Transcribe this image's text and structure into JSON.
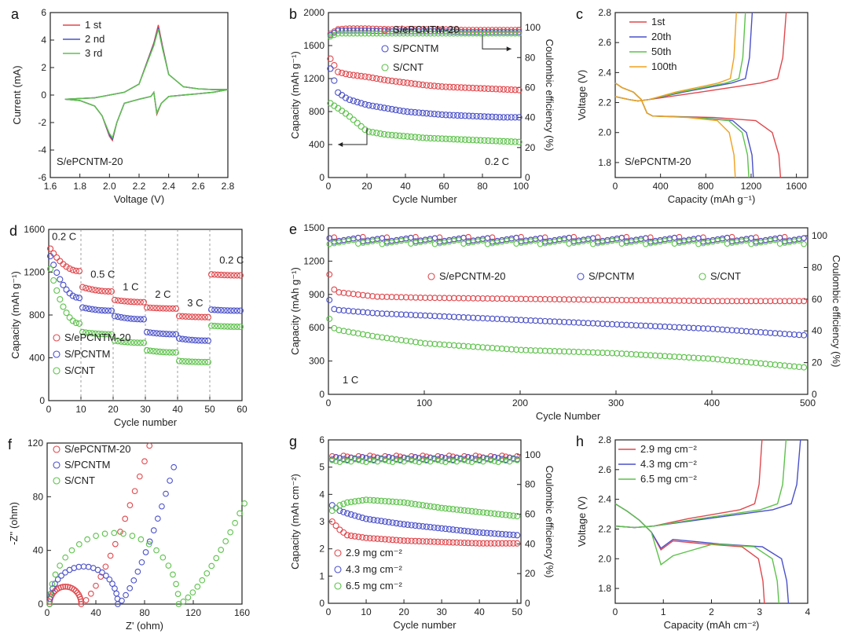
{
  "colors": {
    "red": "#e0474c",
    "blue": "#4a50c9",
    "green": "#5cc24a",
    "orange": "#f0a020"
  },
  "chart_data": [
    {
      "panel": "a",
      "type": "line",
      "xlabel": "Voltage (V)",
      "ylabel": "Current (mA)",
      "xlim": [
        1.6,
        2.8
      ],
      "ylim": [
        -6,
        6
      ],
      "xticks": [
        "1.6",
        "1.8",
        "2.0",
        "2.2",
        "2.4",
        "2.6",
        "2.8"
      ],
      "yticks": [
        "-6",
        "-4",
        "-2",
        "0",
        "2",
        "4",
        "6"
      ],
      "sample_label": "S/ePCNTM-20",
      "series": [
        {
          "name": "1 st",
          "color": "red",
          "x": [
            1.7,
            1.8,
            1.9,
            1.95,
            2.0,
            2.02,
            2.05,
            2.1,
            2.2,
            2.28,
            2.3,
            2.32,
            2.35,
            2.4,
            2.5,
            2.6,
            2.7,
            2.8,
            2.7,
            2.6,
            2.5,
            2.4,
            2.36,
            2.33,
            2.3,
            2.2,
            2.1,
            1.9,
            1.7
          ],
          "y": [
            -0.3,
            -0.4,
            -0.8,
            -1.5,
            -3.0,
            -3.3,
            -2.0,
            -0.6,
            -0.3,
            -0.1,
            0.2,
            -1.4,
            -0.6,
            -0.1,
            0.0,
            0.1,
            0.2,
            0.4,
            0.4,
            0.45,
            0.6,
            1.5,
            3.5,
            5.1,
            3.8,
            0.8,
            0.2,
            -0.2,
            -0.3
          ]
        },
        {
          "name": "2 nd",
          "color": "blue",
          "x": [
            1.7,
            1.8,
            1.9,
            1.95,
            2.0,
            2.02,
            2.05,
            2.1,
            2.2,
            2.28,
            2.3,
            2.32,
            2.35,
            2.4,
            2.5,
            2.6,
            2.7,
            2.8,
            2.7,
            2.6,
            2.5,
            2.4,
            2.36,
            2.33,
            2.3,
            2.2,
            2.1,
            1.9,
            1.7
          ],
          "y": [
            -0.3,
            -0.4,
            -0.8,
            -1.5,
            -2.9,
            -3.2,
            -2.0,
            -0.6,
            -0.3,
            -0.1,
            0.2,
            -1.3,
            -0.6,
            -0.1,
            0.0,
            0.1,
            0.2,
            0.4,
            0.4,
            0.45,
            0.6,
            1.5,
            3.4,
            4.9,
            3.7,
            0.8,
            0.2,
            -0.2,
            -0.3
          ]
        },
        {
          "name": "3 rd",
          "color": "green",
          "x": [
            1.7,
            1.8,
            1.9,
            1.95,
            2.0,
            2.02,
            2.05,
            2.1,
            2.2,
            2.28,
            2.3,
            2.32,
            2.35,
            2.4,
            2.5,
            2.6,
            2.7,
            2.8,
            2.7,
            2.6,
            2.5,
            2.4,
            2.36,
            2.33,
            2.3,
            2.2,
            2.1,
            1.9,
            1.7
          ],
          "y": [
            -0.3,
            -0.4,
            -0.8,
            -1.5,
            -2.8,
            -3.1,
            -2.0,
            -0.6,
            -0.3,
            -0.1,
            0.2,
            -1.3,
            -0.6,
            -0.1,
            0.0,
            0.1,
            0.2,
            0.4,
            0.4,
            0.45,
            0.6,
            1.5,
            3.3,
            4.8,
            3.6,
            0.8,
            0.2,
            -0.2,
            -0.3
          ]
        }
      ]
    },
    {
      "panel": "b",
      "type": "scatter",
      "xlabel": "Cycle Number",
      "ylabel": "Capacity (mAh g⁻¹)",
      "y2label": "Coulombic efficiency (%)",
      "xlim": [
        0,
        100
      ],
      "ylim": [
        0,
        2000
      ],
      "y2lim": [
        0,
        110
      ],
      "xticks": [
        "0",
        "20",
        "40",
        "60",
        "80",
        "100"
      ],
      "yticks": [
        "0",
        "400",
        "800",
        "1200",
        "1600",
        "2000"
      ],
      "y2ticks": [
        "0",
        "20",
        "40",
        "60",
        "80",
        "100"
      ],
      "annotation": "0.2 C",
      "series": [
        {
          "name": "S/ePCNTM-20",
          "color": "red",
          "x": [
            1,
            5,
            10,
            20,
            30,
            40,
            50,
            60,
            70,
            80,
            90,
            100
          ],
          "y": [
            1440,
            1280,
            1250,
            1220,
            1180,
            1150,
            1120,
            1100,
            1090,
            1080,
            1070,
            1060
          ],
          "ce": [
            96,
            99,
            99.5,
            99.5,
            99,
            99,
            99,
            99,
            98.5,
            98.5,
            98.5,
            98.5
          ]
        },
        {
          "name": "S/PCNTM",
          "color": "blue",
          "x": [
            1,
            5,
            10,
            20,
            30,
            40,
            50,
            60,
            70,
            80,
            90,
            100
          ],
          "y": [
            1320,
            1030,
            950,
            880,
            840,
            800,
            780,
            760,
            750,
            740,
            730,
            730
          ],
          "ce": [
            95,
            98,
            98,
            98,
            97.5,
            97.5,
            97.5,
            97.5,
            97,
            97,
            97,
            97
          ]
        },
        {
          "name": "S/CNT",
          "color": "green",
          "x": [
            1,
            5,
            10,
            20,
            30,
            40,
            50,
            60,
            70,
            80,
            90,
            100
          ],
          "y": [
            900,
            840,
            760,
            560,
            520,
            500,
            480,
            470,
            460,
            450,
            440,
            430
          ],
          "ce": [
            94,
            96,
            96,
            96,
            96,
            96,
            96,
            96,
            96,
            96,
            96,
            96
          ]
        }
      ]
    },
    {
      "panel": "c",
      "type": "line",
      "xlabel": "Capacity (mAh g⁻¹)",
      "ylabel": "Voltage (V)",
      "xlim": [
        0,
        1700
      ],
      "ylim": [
        1.7,
        2.8
      ],
      "xticks": [
        "0",
        "400",
        "800",
        "1200",
        "1600"
      ],
      "yticks": [
        "1.8",
        "2.0",
        "2.2",
        "2.4",
        "2.6",
        "2.8"
      ],
      "sample_label": "S/ePCNTM-20",
      "series": [
        {
          "name": "1st",
          "color": "red",
          "discharge_end": 1460,
          "charge_end": 1510
        },
        {
          "name": "20th",
          "color": "blue",
          "discharge_end": 1220,
          "charge_end": 1210
        },
        {
          "name": "50th",
          "color": "green",
          "discharge_end": 1180,
          "charge_end": 1150
        },
        {
          "name": "100th",
          "color": "orange",
          "discharge_end": 1060,
          "charge_end": 1070
        }
      ]
    },
    {
      "panel": "d",
      "type": "scatter",
      "xlabel": "Cycle number",
      "ylabel": "Capacity (mAh g⁻¹)",
      "xlim": [
        0,
        60
      ],
      "ylim": [
        0,
        1600
      ],
      "xticks": [
        "0",
        "10",
        "20",
        "30",
        "40",
        "50",
        "60"
      ],
      "yticks": [
        "0",
        "400",
        "800",
        "1200",
        "1600"
      ],
      "rates": [
        "0.2 C",
        "0.5 C",
        "1 C",
        "2 C",
        "3 C",
        "0.2 C"
      ],
      "series": [
        {
          "name": "S/ePCNTM-20",
          "color": "red",
          "steps": [
            [
              1420,
              1210
            ],
            [
              1060,
              1020
            ],
            [
              940,
              920
            ],
            [
              870,
              860
            ],
            [
              790,
              780
            ],
            [
              1180,
              1170
            ]
          ]
        },
        {
          "name": "S/PCNTM",
          "color": "blue",
          "steps": [
            [
              1350,
              960
            ],
            [
              870,
              840
            ],
            [
              790,
              760
            ],
            [
              640,
              620
            ],
            [
              580,
              560
            ],
            [
              850,
              840
            ]
          ]
        },
        {
          "name": "S/CNT",
          "color": "green",
          "steps": [
            [
              1230,
              720
            ],
            [
              640,
              620
            ],
            [
              560,
              540
            ],
            [
              470,
              450
            ],
            [
              370,
              360
            ],
            [
              700,
              690
            ]
          ]
        }
      ]
    },
    {
      "panel": "e",
      "type": "scatter",
      "xlabel": "Cycle Number",
      "ylabel": "Capacity (mAh g⁻¹)",
      "y2label": "Coulombic efficiency (%)",
      "xlim": [
        0,
        500
      ],
      "ylim": [
        0,
        1500
      ],
      "y2lim": [
        0,
        105
      ],
      "xticks": [
        "0",
        "100",
        "200",
        "300",
        "400",
        "500"
      ],
      "yticks": [
        "0",
        "300",
        "600",
        "900",
        "1200",
        "1500"
      ],
      "y2ticks": [
        "0",
        "20",
        "40",
        "60",
        "80",
        "100"
      ],
      "annotation": "1 C",
      "series": [
        {
          "name": "S/ePCNTM-20",
          "color": "red",
          "x": [
            1,
            5,
            10,
            50,
            100,
            200,
            300,
            400,
            500
          ],
          "y": [
            1080,
            950,
            920,
            880,
            870,
            860,
            850,
            840,
            840
          ],
          "ce": 98
        },
        {
          "name": "S/PCNTM",
          "color": "blue",
          "x": [
            1,
            5,
            10,
            50,
            100,
            200,
            300,
            400,
            500
          ],
          "y": [
            850,
            770,
            760,
            730,
            710,
            670,
            630,
            590,
            530
          ],
          "ce": 97.5
        },
        {
          "name": "S/CNT",
          "color": "green",
          "x": [
            1,
            5,
            10,
            50,
            100,
            200,
            300,
            400,
            500
          ],
          "y": [
            680,
            600,
            580,
            520,
            460,
            400,
            370,
            320,
            240
          ],
          "ce": 96
        }
      ]
    },
    {
      "panel": "f",
      "type": "scatter",
      "xlabel": "Z' (ohm)",
      "ylabel": "-Z'' (ohm)",
      "xlim": [
        0,
        160
      ],
      "ylim": [
        0,
        120
      ],
      "xticks": [
        "0",
        "40",
        "80",
        "120",
        "160"
      ],
      "yticks": [
        "0",
        "40",
        "80",
        "120"
      ],
      "series": [
        {
          "name": "S/ePCNTM-20",
          "color": "red",
          "r0": 2,
          "rct": 26,
          "tail_dx": 56,
          "tail_dy": 118
        },
        {
          "name": "S/PCNTM",
          "color": "blue",
          "r0": 2,
          "rct": 56,
          "tail_dx": 46,
          "tail_dy": 102
        },
        {
          "name": "S/CNT",
          "color": "green",
          "r0": 2,
          "rct": 106,
          "tail_dx": 54,
          "tail_dy": 75
        }
      ]
    },
    {
      "panel": "g",
      "type": "scatter",
      "xlabel": "Cycle number",
      "ylabel": "Capacity (mAh cm⁻²)",
      "y2label": "Coulombic efficiency (%)",
      "xlim": [
        0,
        51
      ],
      "ylim": [
        0,
        6
      ],
      "y2lim": [
        0,
        110
      ],
      "xticks": [
        "0",
        "10",
        "20",
        "30",
        "40",
        "50"
      ],
      "yticks": [
        "0",
        "1",
        "2",
        "3",
        "4",
        "5",
        "6"
      ],
      "y2ticks": [
        "0",
        "20",
        "40",
        "60",
        "80",
        "100"
      ],
      "series": [
        {
          "name": "2.9 mg cm⁻²",
          "color": "red",
          "x": [
            1,
            3,
            5,
            10,
            20,
            30,
            40,
            50
          ],
          "y": [
            3.0,
            2.7,
            2.5,
            2.4,
            2.3,
            2.25,
            2.2,
            2.2
          ],
          "ce": 98.5
        },
        {
          "name": "4.3 mg cm⁻²",
          "color": "blue",
          "x": [
            1,
            3,
            5,
            10,
            20,
            30,
            40,
            50
          ],
          "y": [
            3.6,
            3.4,
            3.3,
            3.1,
            2.9,
            2.75,
            2.6,
            2.5
          ],
          "ce": 97.5
        },
        {
          "name": "6.5 mg cm⁻²",
          "color": "green",
          "x": [
            1,
            3,
            5,
            10,
            20,
            30,
            40,
            50
          ],
          "y": [
            3.4,
            3.6,
            3.7,
            3.8,
            3.7,
            3.5,
            3.35,
            3.2
          ],
          "ce": 96
        }
      ]
    },
    {
      "panel": "h",
      "type": "line",
      "xlabel": "Capacity (mAh cm⁻²)",
      "ylabel": "Voltage (V)",
      "xlim": [
        0,
        4
      ],
      "ylim": [
        1.7,
        2.8
      ],
      "xticks": [
        "0",
        "1",
        "2",
        "3",
        "4"
      ],
      "yticks": [
        "1.8",
        "2.0",
        "2.2",
        "2.4",
        "2.6",
        "2.8"
      ],
      "series": [
        {
          "name": "2.9 mg cm⁻²",
          "color": "red",
          "discharge_end": 3.1,
          "charge_end": 3.05,
          "dip": 2.06
        },
        {
          "name": "4.3 mg cm⁻²",
          "color": "blue",
          "discharge_end": 3.6,
          "charge_end": 3.85,
          "dip": 2.07
        },
        {
          "name": "6.5 mg cm⁻²",
          "color": "green",
          "discharge_end": 3.4,
          "charge_end": 3.55,
          "dip": 1.96
        }
      ]
    }
  ]
}
